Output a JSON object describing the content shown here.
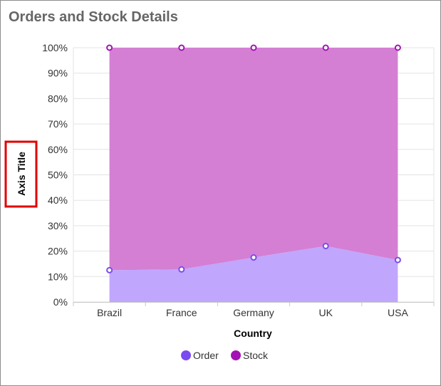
{
  "title": "Orders and Stock Details",
  "chart_data": {
    "type": "area",
    "stacking": "100%",
    "title": "Orders and Stock Details",
    "xlabel": "Country",
    "ylabel": "Axis Title",
    "categories": [
      "Brazil",
      "France",
      "Germany",
      "UK",
      "USA"
    ],
    "ylim": [
      0,
      100
    ],
    "yticks": [
      "0%",
      "10%",
      "20%",
      "30%",
      "40%",
      "50%",
      "60%",
      "70%",
      "80%",
      "90%",
      "100%"
    ],
    "grid": true,
    "legend_position": "bottom",
    "series": [
      {
        "name": "Order",
        "values": [
          12.5,
          12.8,
          17.5,
          22,
          16.5
        ],
        "color": "#7b4af0"
      },
      {
        "name": "Stock",
        "values": [
          87.5,
          87.2,
          82.5,
          78,
          83.5
        ],
        "color": "#a313b4"
      }
    ],
    "fills": {
      "Order": "#c1a6fd",
      "Stock": "#d47fd4"
    },
    "highlight_box_color": "#e00000"
  }
}
